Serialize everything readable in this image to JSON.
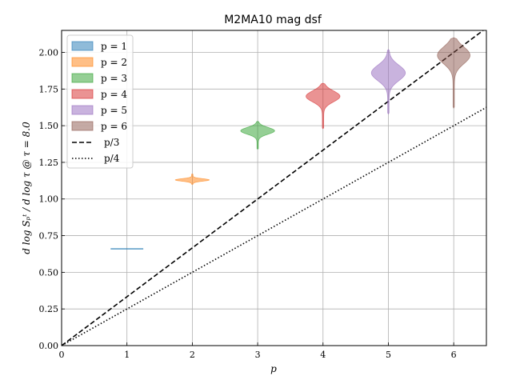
{
  "chart_data": {
    "type": "violin",
    "title": "M2MA10 mag dsf",
    "xlabel": "p",
    "ylabel": "d log Sₚᵗ / d log τ @ τ = 8.0",
    "xlim": [
      0,
      6.5
    ],
    "ylim": [
      0,
      2.15
    ],
    "xticks": [
      "0",
      "1",
      "2",
      "3",
      "4",
      "5",
      "6"
    ],
    "yticks": [
      "0.00",
      "0.25",
      "0.50",
      "0.75",
      "1.00",
      "1.25",
      "1.50",
      "1.75",
      "2.00"
    ],
    "grid": true,
    "legend_position": "top-left",
    "series": [
      {
        "name": "p = 1",
        "p": 1,
        "center": 0.66,
        "low": 0.659,
        "high": 0.661,
        "halfwidth": 0.25,
        "color": "#1f77b4"
      },
      {
        "name": "p = 2",
        "p": 2,
        "center": 1.13,
        "low": 1.1,
        "high": 1.17,
        "halfwidth": 0.26,
        "color": "#ff7f0e"
      },
      {
        "name": "p = 3",
        "p": 3,
        "center": 1.465,
        "low": 1.34,
        "high": 1.53,
        "halfwidth": 0.26,
        "color": "#2ca02c"
      },
      {
        "name": "p = 4",
        "p": 4,
        "center": 1.7,
        "low": 1.48,
        "high": 1.79,
        "halfwidth": 0.26,
        "color": "#d62728"
      },
      {
        "name": "p = 5",
        "p": 5,
        "center": 1.86,
        "low": 1.58,
        "high": 2.02,
        "halfwidth": 0.26,
        "color": "#9467bd"
      },
      {
        "name": "p = 6",
        "p": 6,
        "center": 1.98,
        "low": 1.62,
        "high": 2.1,
        "halfwidth": 0.25,
        "color": "#8c564b"
      }
    ],
    "reference_lines": [
      {
        "name": "p/3",
        "slope": 0.3333,
        "style": "dashed"
      },
      {
        "name": "p/4",
        "slope": 0.25,
        "style": "dotted"
      }
    ]
  }
}
